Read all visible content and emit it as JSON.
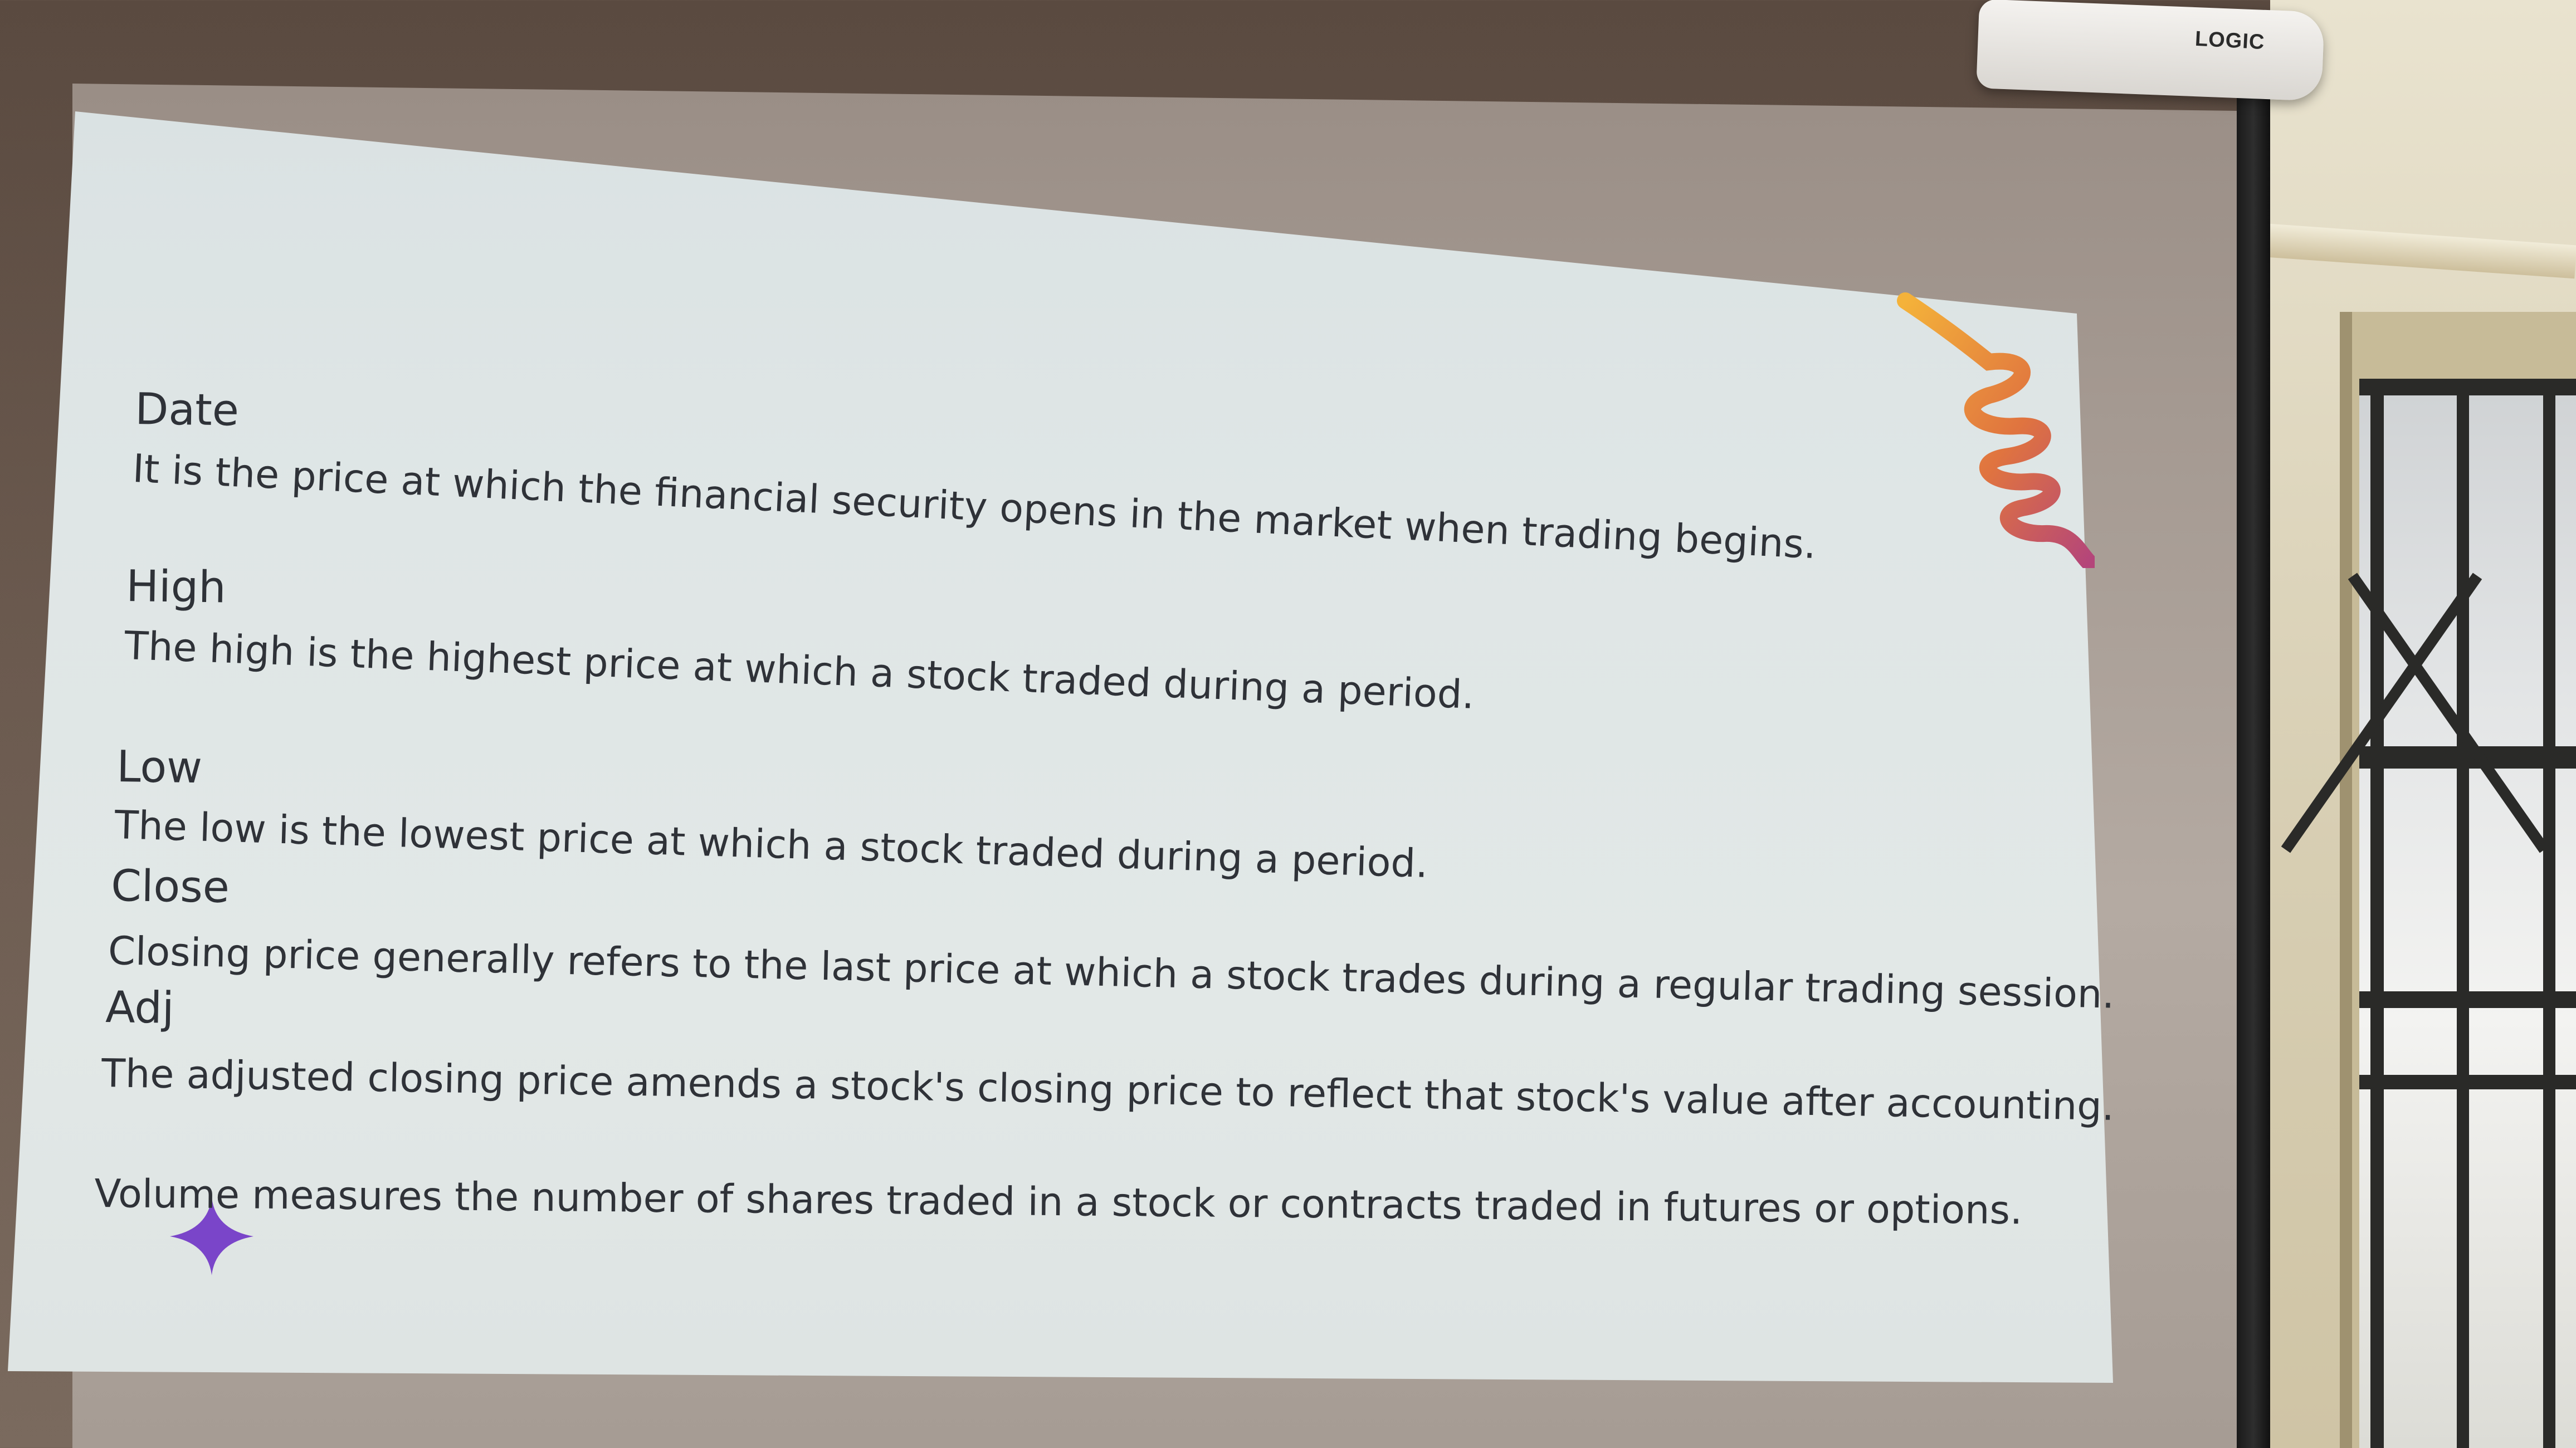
{
  "screen": {
    "brand": "LOGIC"
  },
  "slide": {
    "terms": [
      {
        "heading": "Date",
        "description": "It is the price at which the financial security opens in the market when trading begins."
      },
      {
        "heading": "High",
        "description": "The high is the highest price at which a stock traded during a period."
      },
      {
        "heading": "Low",
        "description": "The low is the lowest price at which a stock traded during a period."
      },
      {
        "heading": "Close",
        "description": "Closing price generally refers to the last price at which a stock trades during a regular trading session."
      },
      {
        "heading": "Adj",
        "description": "The adjusted closing price amends a stock's closing price to reflect that stock's value after accounting."
      }
    ],
    "volume_text": "Volume measures the number of shares traded in a stock or contracts traded in futures or options.",
    "colors": {
      "text": "#2f3238",
      "slide_bg": "#dfe6e6",
      "spiral_start": "#f4b23a",
      "spiral_end": "#b4457a",
      "sparkle": "#7a45c9"
    }
  }
}
